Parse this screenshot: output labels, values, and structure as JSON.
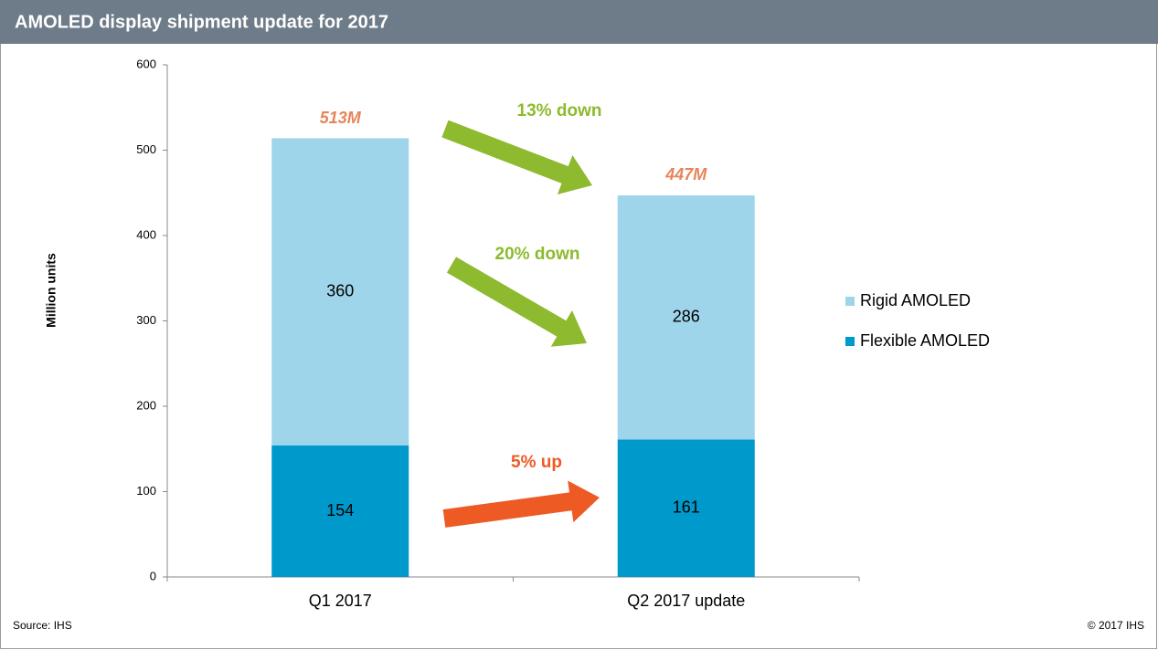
{
  "chart_data": {
    "type": "stacked_bar",
    "title": "AMOLED display shipment update for 2017",
    "ylabel": "Million units",
    "categories": [
      "Q1 2017",
      "Q2 2017 update"
    ],
    "series": [
      {
        "name": "Flexible AMOLED",
        "color": "#0099cc",
        "values": [
          154,
          161
        ]
      },
      {
        "name": "Rigid AMOLED",
        "color": "#9fd5ea",
        "values": [
          360,
          286
        ]
      }
    ],
    "totals": {
      "values": [
        513,
        447
      ],
      "value_labels": [
        "513M",
        "447M"
      ],
      "color": "#e8845a"
    },
    "annotations": [
      {
        "text": "13% down",
        "color": "#8dba2e"
      },
      {
        "text": "20% down",
        "color": "#8dba2e"
      },
      {
        "text": "5% up",
        "color": "#ee5a24"
      }
    ],
    "ylim": [
      0,
      600
    ],
    "yticks": [
      0,
      100,
      200,
      300,
      400,
      500,
      600
    ],
    "legend": "right",
    "source": "Source: IHS",
    "copyright": "© 2017 IHS"
  }
}
